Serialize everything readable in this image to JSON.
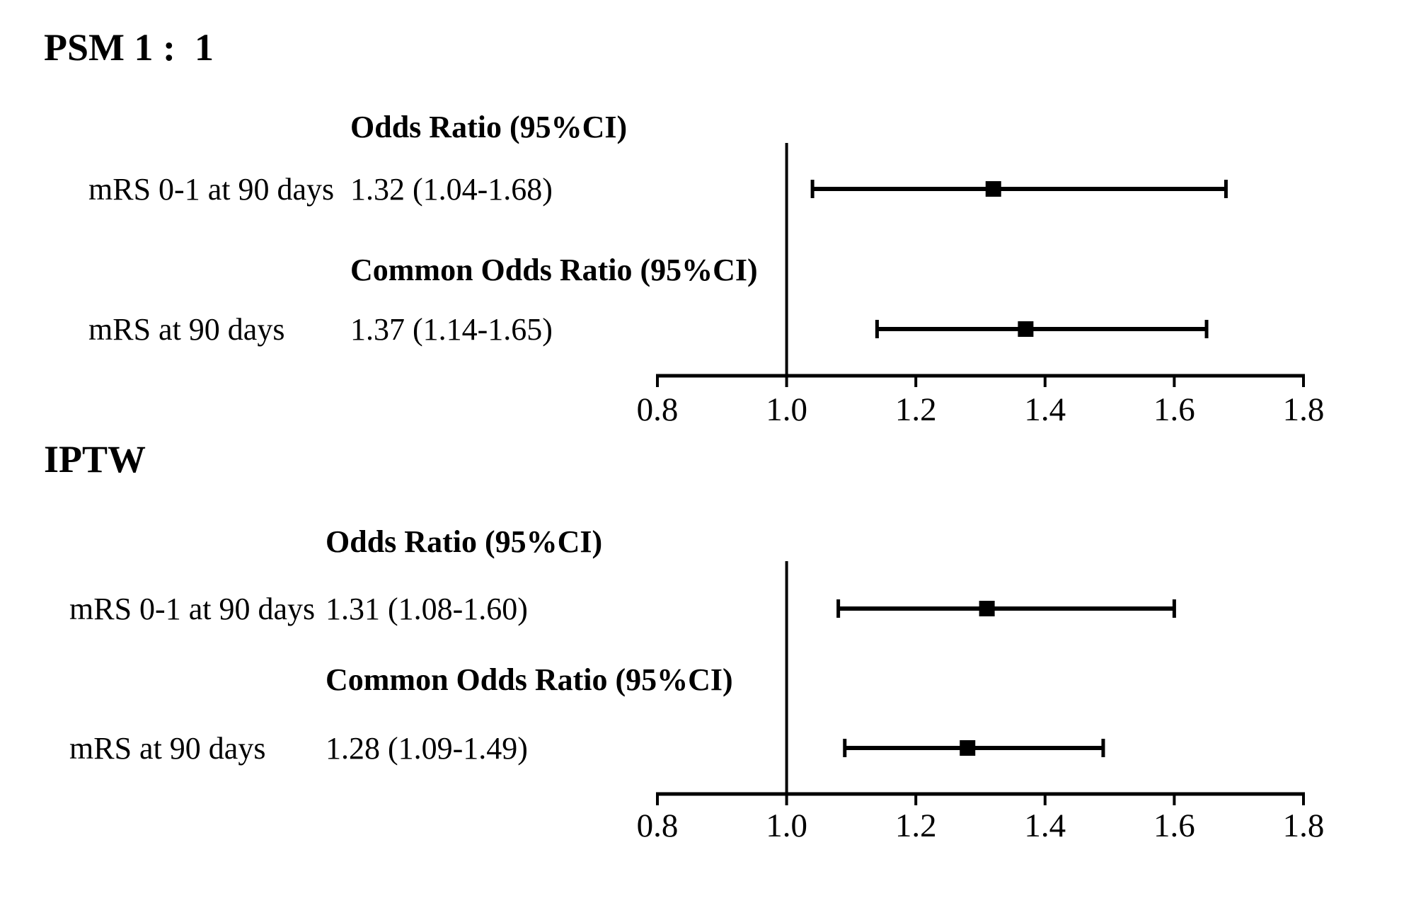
{
  "figure": {
    "background_color": "#ffffff",
    "ink_color": "#000000"
  },
  "chart_data": [
    {
      "type": "forest",
      "title": "PSM 1 :  1",
      "axis": {
        "xlabel": "",
        "xlim": [
          0.8,
          1.8
        ],
        "ticks": [
          "0.8",
          "1.0",
          "1.2",
          "1.4",
          "1.6",
          "1.8"
        ],
        "ref_line": 1.0,
        "grid": false
      },
      "groups": [
        {
          "header": "Odds Ratio (95%CI)",
          "label": "mRS 0-1 at 90 days",
          "estimate_text": "1.32 (1.04-1.68)",
          "point": 1.32,
          "ci_low": 1.04,
          "ci_high": 1.68
        },
        {
          "header": "Common Odds Ratio (95%CI)",
          "label": "mRS at 90 days",
          "estimate_text": "1.37 (1.14-1.65)",
          "point": 1.37,
          "ci_low": 1.14,
          "ci_high": 1.65
        }
      ]
    },
    {
      "type": "forest",
      "title": "IPTW",
      "axis": {
        "xlabel": "",
        "xlim": [
          0.8,
          1.8
        ],
        "ticks": [
          "0.8",
          "1.0",
          "1.2",
          "1.4",
          "1.6",
          "1.8"
        ],
        "ref_line": 1.0,
        "grid": false
      },
      "groups": [
        {
          "header": "Odds Ratio (95%CI)",
          "label": "mRS 0-1 at 90 days",
          "estimate_text": "1.31 (1.08-1.60)",
          "point": 1.31,
          "ci_low": 1.08,
          "ci_high": 1.6
        },
        {
          "header": "Common Odds Ratio (95%CI)",
          "label": "mRS at 90 days",
          "estimate_text": "1.28 (1.09-1.49)",
          "point": 1.28,
          "ci_low": 1.09,
          "ci_high": 1.49
        }
      ]
    }
  ]
}
